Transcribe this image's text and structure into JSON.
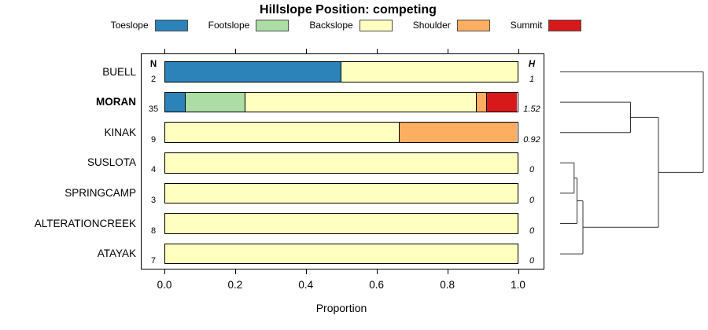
{
  "title": "Hillslope Position: competing",
  "legend": [
    {
      "label": "Toeslope",
      "color": "#2b83ba"
    },
    {
      "label": "Footslope",
      "color": "#abdda4"
    },
    {
      "label": "Backslope",
      "color": "#ffffbf"
    },
    {
      "label": "Shoulder",
      "color": "#fdae61"
    },
    {
      "label": "Summit",
      "color": "#d7191c"
    }
  ],
  "columns": {
    "n_header": "N",
    "h_header": "H"
  },
  "axis": {
    "label": "Proportion",
    "ticks": [
      "0.0",
      "0.2",
      "0.4",
      "0.6",
      "0.8",
      "1.0"
    ]
  },
  "chart_data": {
    "type": "bar",
    "stacked": true,
    "orientation": "horizontal",
    "title": "Hillslope Position: competing",
    "xlabel": "Proportion",
    "xlim": [
      0,
      1
    ],
    "categories": [
      "Toeslope",
      "Footslope",
      "Backslope",
      "Shoulder",
      "Summit"
    ],
    "colors": {
      "Toeslope": "#2b83ba",
      "Footslope": "#abdda4",
      "Backslope": "#ffffbf",
      "Shoulder": "#fdae61",
      "Summit": "#d7191c"
    },
    "rows": [
      {
        "label": "BUELL",
        "bold": false,
        "n": "2",
        "h": "1",
        "segments": [
          {
            "category": "Toeslope",
            "value": 0.5
          },
          {
            "category": "Backslope",
            "value": 0.5
          }
        ]
      },
      {
        "label": "MORAN",
        "bold": true,
        "n": "35",
        "h": "1.52",
        "segments": [
          {
            "category": "Toeslope",
            "value": 0.0571
          },
          {
            "category": "Footslope",
            "value": 0.1714
          },
          {
            "category": "Backslope",
            "value": 0.6571
          },
          {
            "category": "Shoulder",
            "value": 0.0286
          },
          {
            "category": "Summit",
            "value": 0.0857
          }
        ]
      },
      {
        "label": "KINAK",
        "bold": false,
        "n": "9",
        "h": "0.92",
        "segments": [
          {
            "category": "Backslope",
            "value": 0.6667
          },
          {
            "category": "Shoulder",
            "value": 0.3333
          }
        ]
      },
      {
        "label": "SUSLOTA",
        "bold": false,
        "n": "4",
        "h": "0",
        "segments": [
          {
            "category": "Backslope",
            "value": 1
          }
        ]
      },
      {
        "label": "SPRINGCAMP",
        "bold": false,
        "n": "3",
        "h": "0",
        "segments": [
          {
            "category": "Backslope",
            "value": 1
          }
        ]
      },
      {
        "label": "ALTERATIONCREEK",
        "bold": false,
        "n": "8",
        "h": "0",
        "segments": [
          {
            "category": "Backslope",
            "value": 1
          }
        ]
      },
      {
        "label": "ATAYAK",
        "bold": false,
        "n": "7",
        "h": "0",
        "segments": [
          {
            "category": "Backslope",
            "value": 1
          }
        ]
      }
    ],
    "dendrogram": {
      "topology": "(BUELL,((MORAN,KINAK),((SUSLOTA,SPRINGCAMP),ALTERATIONCREEK,ATAYAK)))",
      "line_color": "#333333",
      "segments": [
        [
          712.0,
          91.5,
          894.0,
          91.5
        ],
        [
          712.0,
          130.1,
          801.5,
          130.1
        ],
        [
          712.0,
          168.7,
          801.5,
          168.7
        ],
        [
          801.5,
          130.1,
          801.5,
          168.7
        ],
        [
          801.5,
          149.4,
          837.0,
          149.4
        ],
        [
          712.0,
          207.3,
          729.8,
          207.3
        ],
        [
          712.0,
          245.9,
          729.8,
          245.9
        ],
        [
          729.8,
          207.3,
          729.8,
          245.9
        ],
        [
          729.8,
          226.6,
          733.5,
          226.6
        ],
        [
          712.0,
          284.5,
          733.5,
          284.5
        ],
        [
          733.5,
          226.6,
          733.5,
          284.5
        ],
        [
          733.5,
          255.6,
          741.0,
          255.6
        ],
        [
          712.0,
          323.1,
          741.0,
          323.1
        ],
        [
          741.0,
          255.6,
          741.0,
          323.1
        ],
        [
          741.0,
          289.3,
          837.0,
          289.3
        ],
        [
          837.0,
          149.4,
          837.0,
          289.3
        ],
        [
          837.0,
          219.4,
          894.0,
          219.4
        ],
        [
          894.0,
          91.5,
          894.0,
          219.4
        ]
      ]
    }
  }
}
